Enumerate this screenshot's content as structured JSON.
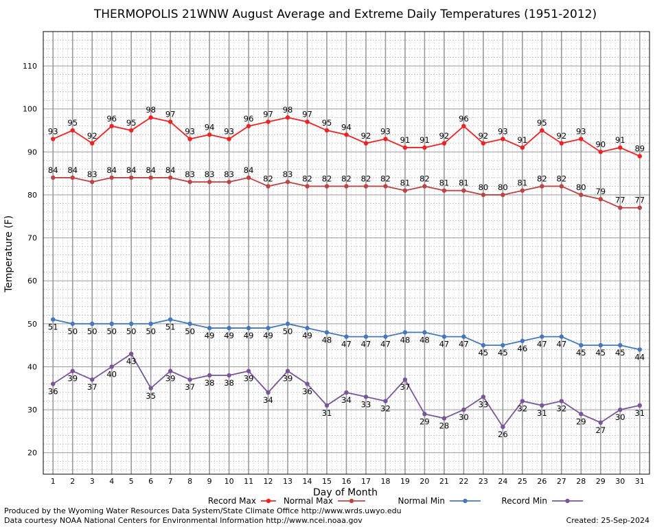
{
  "chart_data": {
    "type": "line",
    "title": "THERMOPOLIS 21WNW August Average and Extreme Daily Temperatures (1951-2012)",
    "xlabel": "Day of Month",
    "ylabel": "Temperature (F)",
    "x": [
      1,
      2,
      3,
      4,
      5,
      6,
      7,
      8,
      9,
      10,
      11,
      12,
      13,
      14,
      15,
      16,
      17,
      18,
      19,
      20,
      21,
      22,
      23,
      24,
      25,
      26,
      27,
      28,
      29,
      30,
      31
    ],
    "xlim": [
      0.5,
      31.5
    ],
    "ylim": [
      15,
      118
    ],
    "yticks": [
      20,
      30,
      40,
      50,
      60,
      70,
      80,
      90,
      100,
      110
    ],
    "grid": true,
    "legend_position": "bottom",
    "series": [
      {
        "name": "Record Max",
        "color": "#ee2222",
        "values": [
          93,
          95,
          92,
          96,
          95,
          98,
          97,
          93,
          94,
          93,
          96,
          97,
          98,
          97,
          95,
          94,
          92,
          93,
          91,
          91,
          92,
          96,
          92,
          93,
          91,
          95,
          92,
          93,
          90,
          91,
          89
        ]
      },
      {
        "name": "Normal Max",
        "color": "#bb4444",
        "values": [
          84,
          84,
          83,
          84,
          84,
          84,
          84,
          83,
          83,
          83,
          84,
          82,
          83,
          82,
          82,
          82,
          82,
          82,
          81,
          82,
          81,
          81,
          80,
          80,
          81,
          82,
          82,
          80,
          79,
          77,
          77
        ]
      },
      {
        "name": "Normal Min",
        "color": "#4477bb",
        "values": [
          51,
          50,
          50,
          50,
          50,
          50,
          51,
          50,
          49,
          49,
          49,
          49,
          50,
          49,
          48,
          47,
          47,
          47,
          48,
          48,
          47,
          47,
          45,
          45,
          46,
          47,
          47,
          45,
          45,
          45,
          44
        ]
      },
      {
        "name": "Record Min",
        "color": "#775599",
        "values": [
          36,
          39,
          37,
          40,
          43,
          35,
          39,
          37,
          38,
          38,
          39,
          34,
          39,
          36,
          31,
          34,
          33,
          32,
          37,
          29,
          28,
          30,
          33,
          26,
          32,
          31,
          32,
          29,
          27,
          30,
          31
        ]
      }
    ]
  },
  "credits": {
    "produced_by": "Produced by the Wyoming Water Resources Data System/State Climate Office http://www.wrds.uwyo.edu",
    "courtesy": "Data courtesy NOAA National Centers for Environmental Information http://www.ncei.noaa.gov",
    "created": "Created:  25-Sep-2024"
  }
}
